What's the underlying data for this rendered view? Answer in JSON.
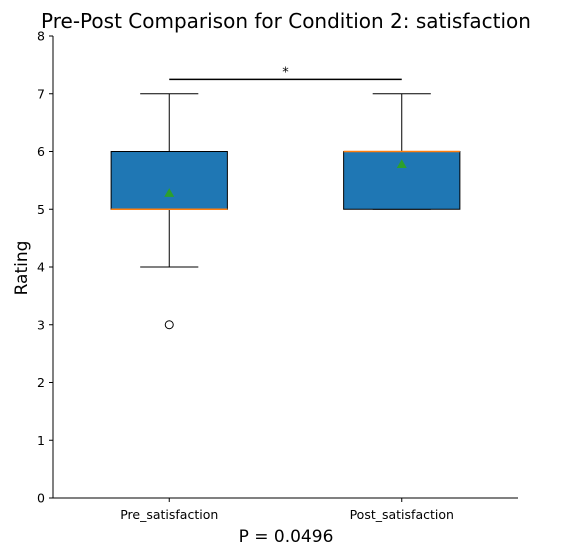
{
  "chart_data": {
    "type": "box",
    "title": "Pre-Post Comparison for Condition 2: satisfaction",
    "xlabel": "P = 0.0496",
    "ylabel": "Rating",
    "ylim": [
      0,
      8
    ],
    "yticks": [
      "0",
      "1",
      "2",
      "3",
      "4",
      "5",
      "6",
      "7",
      "8"
    ],
    "categories": [
      "Pre_satisfaction",
      "Post_satisfaction"
    ],
    "boxes": [
      {
        "q1": 5,
        "median": 5,
        "q3": 6,
        "whisker_low": 4,
        "whisker_high": 7,
        "mean": 5.28,
        "outliers": [
          3
        ]
      },
      {
        "q1": 5,
        "median": 6,
        "q3": 6,
        "whisker_low": 5,
        "whisker_high": 7,
        "mean": 5.78,
        "outliers": []
      }
    ],
    "significance": {
      "label": "*",
      "y": 7.25
    },
    "colors": {
      "box_fill": "#1f77b4",
      "median": "#ff7f0e",
      "mean": "#2ca02c"
    },
    "grid": false,
    "legend": "none"
  }
}
